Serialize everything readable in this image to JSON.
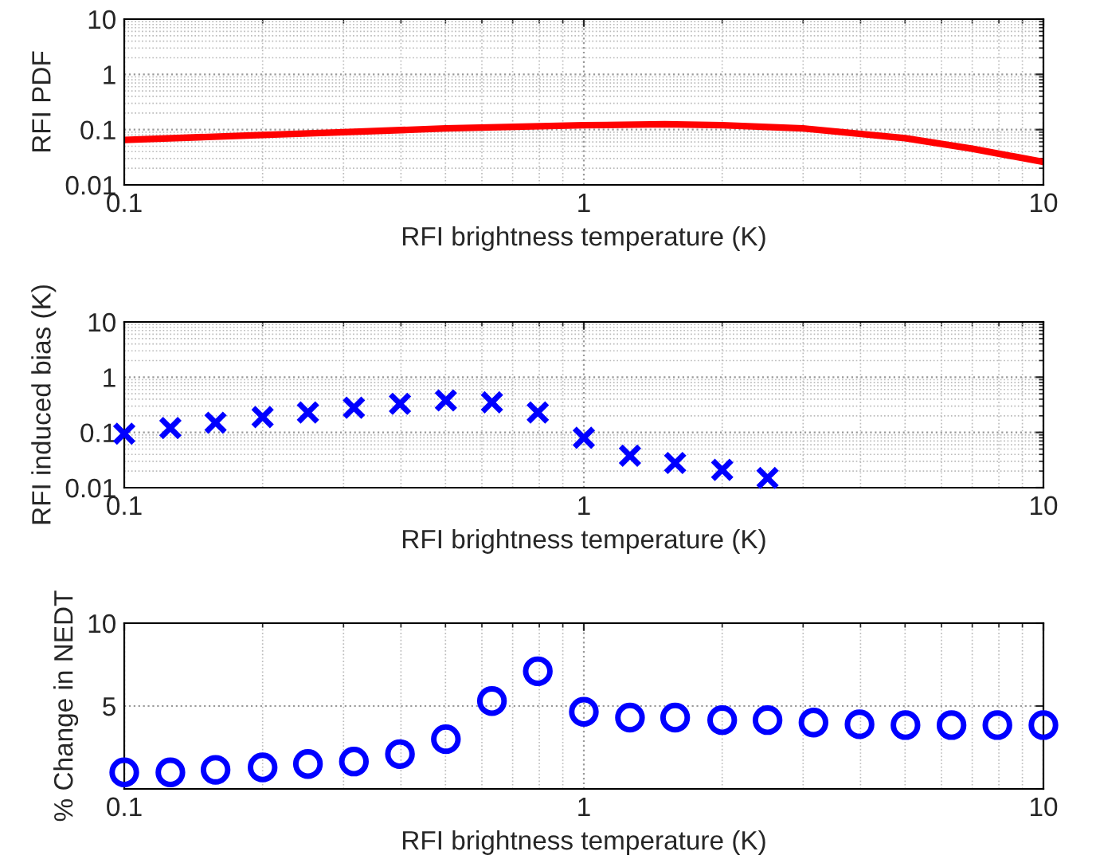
{
  "chart_data": [
    {
      "type": "line",
      "xlabel": "RFI brightness temperature (K)",
      "ylabel": "RFI PDF",
      "log": "xy",
      "grid": true,
      "xlim": [
        0.1,
        10
      ],
      "xticks": [
        0.1,
        1,
        10
      ],
      "ylim": [
        0.01,
        10
      ],
      "yticks": [
        0.01,
        0.1,
        1,
        10
      ],
      "marker": "none",
      "line_style": "solid",
      "x": [
        0.1,
        0.2,
        0.3,
        0.5,
        1,
        1.5,
        2,
        3,
        5,
        7,
        10
      ],
      "series": [
        {
          "color": "#ff0000",
          "values": [
            0.065,
            0.08,
            0.09,
            0.105,
            0.12,
            0.125,
            0.12,
            0.105,
            0.07,
            0.045,
            0.026
          ]
        }
      ]
    },
    {
      "type": "scatter",
      "xlabel": "RFI brightness temperature (K)",
      "ylabel": "RFI induced bias (K)",
      "log": "xy",
      "grid": true,
      "xlim": [
        0.1,
        10
      ],
      "xticks": [
        0.1,
        1,
        10
      ],
      "ylim": [
        0.01,
        10
      ],
      "yticks": [
        0.01,
        0.1,
        1,
        10
      ],
      "marker": "cross",
      "x": [
        0.1,
        0.126,
        0.158,
        0.2,
        0.251,
        0.316,
        0.398,
        0.501,
        0.631,
        0.794,
        1,
        1.26,
        1.58,
        2,
        2.51
      ],
      "series": [
        {
          "color": "#0000ff",
          "values": [
            0.095,
            0.12,
            0.15,
            0.19,
            0.23,
            0.28,
            0.33,
            0.38,
            0.35,
            0.23,
            0.08,
            0.038,
            0.028,
            0.021,
            0.015
          ]
        }
      ]
    },
    {
      "type": "scatter",
      "xlabel": "RFI brightness temperature (K)",
      "ylabel": "% Change in NEDT",
      "log": "x",
      "grid": true,
      "xlim": [
        0.1,
        10
      ],
      "xticks": [
        0.1,
        1,
        10
      ],
      "ylim": [
        0,
        10
      ],
      "yticks": [
        {
          "value": 0,
          "label": null
        },
        5,
        10
      ],
      "marker": "circle",
      "x": [
        0.1,
        0.126,
        0.158,
        0.2,
        0.251,
        0.316,
        0.398,
        0.501,
        0.631,
        0.794,
        1,
        1.26,
        1.58,
        2,
        2.51,
        3.16,
        3.98,
        5.01,
        6.31,
        7.94,
        10
      ],
      "series": [
        {
          "color": "#0000ff",
          "values": [
            1.0,
            1.0,
            1.15,
            1.3,
            1.5,
            1.65,
            2.1,
            3.0,
            5.3,
            7.1,
            4.65,
            4.3,
            4.3,
            4.15,
            4.15,
            4.0,
            3.9,
            3.85,
            3.85,
            3.85,
            3.85
          ]
        }
      ]
    }
  ]
}
